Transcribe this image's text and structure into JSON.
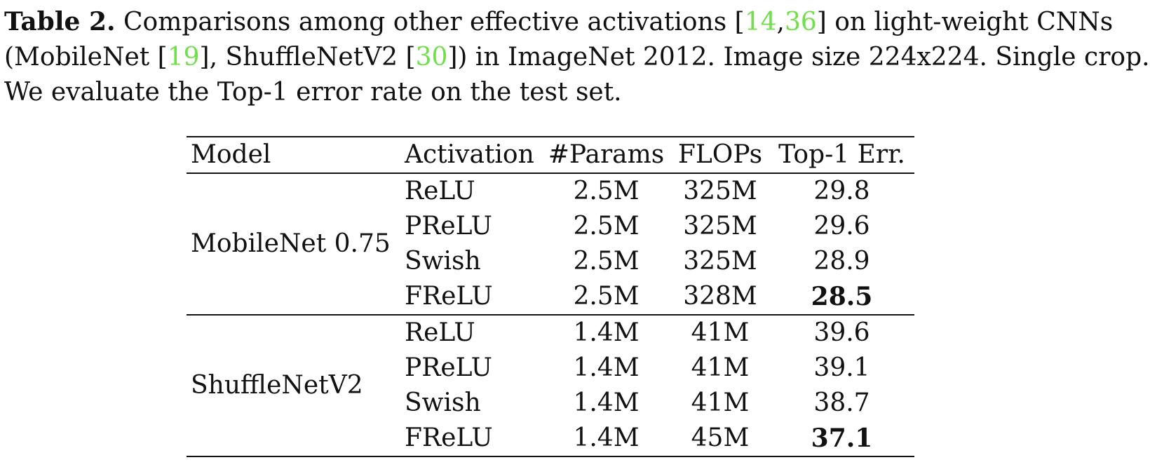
{
  "caption": {
    "label": "Table 2.",
    "line1_text": " Comparisons among other effective activations [",
    "cite1": "14",
    "comma": ",",
    "cite2": "36",
    "line1_tail": "] on light-weight CNNs",
    "line2_head": "(MobileNet [",
    "cite3": "19",
    "line2_mid": "], ShuffleNetV2 [",
    "cite4": "30",
    "line2_tail": "]) in ImageNet 2012. Image size 224x224. Single crop.",
    "line3": "We evaluate the Top-1 error rate on the test set."
  },
  "colors": {
    "citation": "#6fe04a",
    "text": "#111111"
  },
  "table": {
    "headers": [
      "Model",
      "Activation",
      "#Params",
      "FLOPs",
      "Top-1 Err."
    ],
    "groups": [
      {
        "model": "MobileNet 0.75",
        "rows": [
          {
            "activation": "ReLU",
            "params": "2.5M",
            "flops": "325M",
            "err": "29.8"
          },
          {
            "activation": "PReLU",
            "params": "2.5M",
            "flops": "325M",
            "err": "29.6"
          },
          {
            "activation": "Swish",
            "params": "2.5M",
            "flops": "325M",
            "err": "28.9"
          },
          {
            "activation": "FReLU",
            "params": "2.5M",
            "flops": "328M",
            "err": "28.5"
          }
        ]
      },
      {
        "model": "ShuffleNetV2",
        "rows": [
          {
            "activation": "ReLU",
            "params": "1.4M",
            "flops": "41M",
            "err": "39.6"
          },
          {
            "activation": "PReLU",
            "params": "1.4M",
            "flops": "41M",
            "err": "39.1"
          },
          {
            "activation": "Swish",
            "params": "1.4M",
            "flops": "41M",
            "err": "38.7"
          },
          {
            "activation": "FReLU",
            "params": "1.4M",
            "flops": "45M",
            "err": "37.1"
          }
        ]
      }
    ]
  }
}
